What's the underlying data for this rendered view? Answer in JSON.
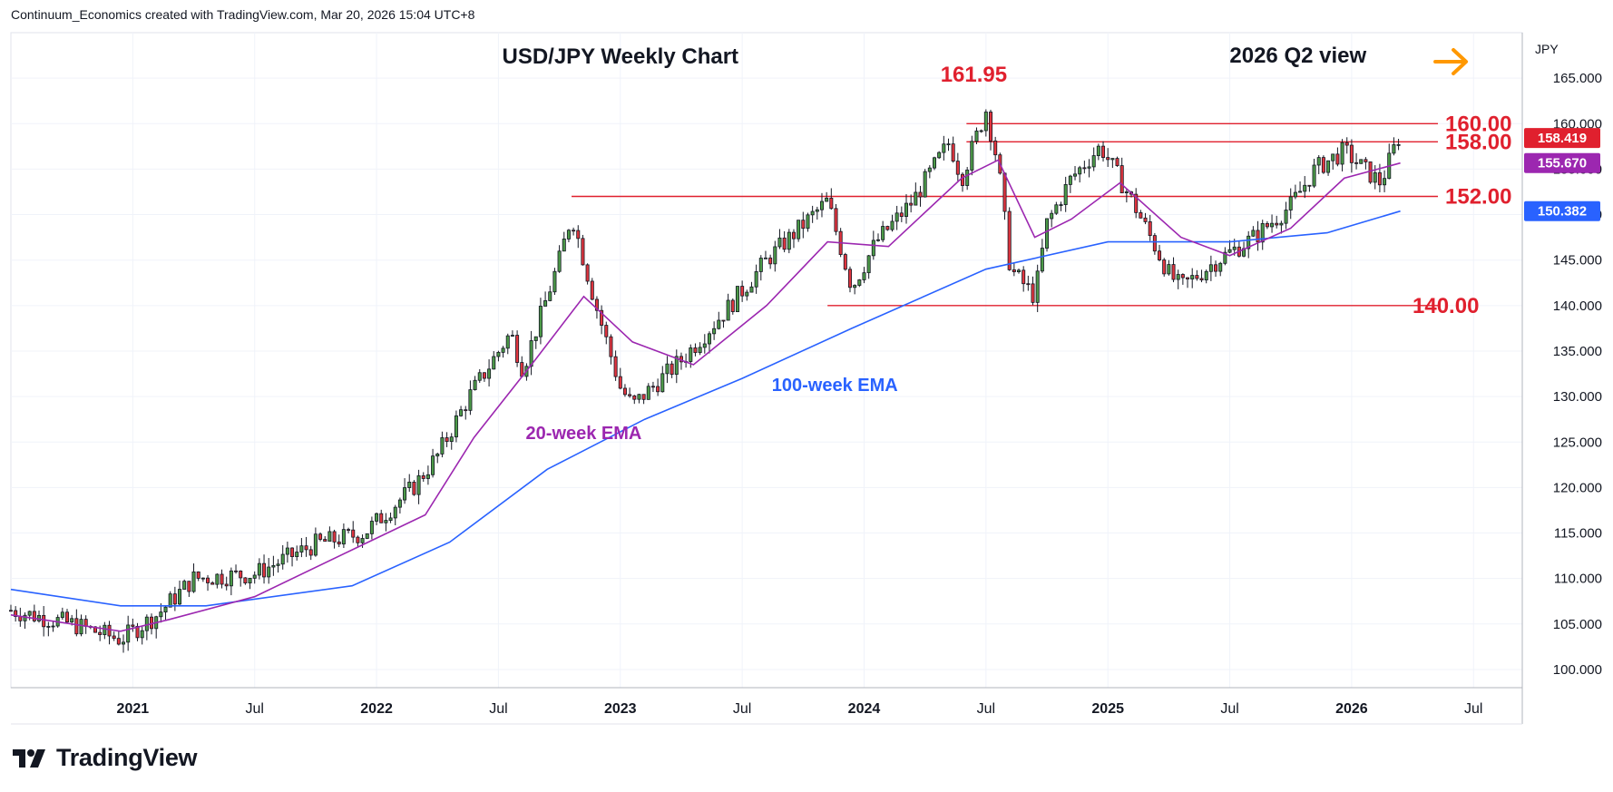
{
  "header": {
    "attribution": "Continuum_Economics created with TradingView.com, Mar 20, 2026 15:04 UTC+8"
  },
  "footer": {
    "brand": "TradingView"
  },
  "colors": {
    "up": "#4c9a48",
    "down": "#e0353f",
    "resistance": "#e0202e",
    "ema20": "#9c27b0",
    "ema100": "#2962ff",
    "arrow": "#ff9800"
  },
  "chart_data": {
    "type": "candlestick",
    "title": "USD/JPY Weekly Chart",
    "subtitle": "2026 Q2 view",
    "currency": "JPY",
    "ylim": [
      98,
      170
    ],
    "yticks": [
      "165.000",
      "160.000",
      "155.000",
      "150.000",
      "145.000",
      "140.000",
      "135.000",
      "130.000",
      "125.000",
      "120.000",
      "115.000",
      "110.000",
      "105.000",
      "100.000"
    ],
    "xticks": [
      "2021",
      "Jul",
      "2022",
      "Jul",
      "2023",
      "Jul",
      "2024",
      "Jul",
      "2025",
      "Jul",
      "2026",
      "Jul"
    ],
    "peak_label": "161.95",
    "levels": [
      {
        "value": 160.0,
        "label": "160.00",
        "from": "2024-05"
      },
      {
        "value": 158.0,
        "label": "158.00",
        "from": "2024-05"
      },
      {
        "value": 152.0,
        "label": "152.00",
        "from": "2022-10"
      },
      {
        "value": 140.0,
        "label": "140.00",
        "from": "2023-12"
      }
    ],
    "price_tags": [
      {
        "value": "158.419",
        "series": "price"
      },
      {
        "value": "155.670",
        "series": "ema20"
      },
      {
        "value": "150.382",
        "series": "ema100"
      }
    ],
    "series_labels": {
      "ema20": "20-week EMA",
      "ema100": "100-week EMA"
    },
    "weekly_close_path": [
      [
        2020.5,
        106.5
      ],
      [
        2020.75,
        105.0
      ],
      [
        2020.95,
        103.3
      ],
      [
        2021.1,
        106.0
      ],
      [
        2021.25,
        110.0
      ],
      [
        2021.5,
        110.5
      ],
      [
        2021.75,
        113.8
      ],
      [
        2021.95,
        115.0
      ],
      [
        2022.15,
        120.0
      ],
      [
        2022.25,
        123.5
      ],
      [
        2022.38,
        130.0
      ],
      [
        2022.55,
        137.0
      ],
      [
        2022.6,
        133.0
      ],
      [
        2022.75,
        145.0
      ],
      [
        2022.8,
        150.0
      ],
      [
        2022.9,
        140.0
      ],
      [
        2023.0,
        131.0
      ],
      [
        2023.05,
        129.0
      ],
      [
        2023.25,
        134.0
      ],
      [
        2023.45,
        140.0
      ],
      [
        2023.6,
        145.0
      ],
      [
        2023.85,
        151.5
      ],
      [
        2023.95,
        142.0
      ],
      [
        2024.05,
        147.0
      ],
      [
        2024.2,
        151.5
      ],
      [
        2024.35,
        158.0
      ],
      [
        2024.4,
        154.0
      ],
      [
        2024.5,
        161.5
      ],
      [
        2024.55,
        155.5
      ],
      [
        2024.6,
        144.0
      ],
      [
        2024.7,
        141.0
      ],
      [
        2024.75,
        149.0
      ],
      [
        2024.85,
        154.0
      ],
      [
        2024.97,
        157.5
      ],
      [
        2025.1,
        151.5
      ],
      [
        2025.25,
        143.5
      ],
      [
        2025.3,
        142.0
      ],
      [
        2025.45,
        145.0
      ],
      [
        2025.6,
        147.5
      ],
      [
        2025.75,
        151.0
      ],
      [
        2025.85,
        155.0
      ],
      [
        2025.97,
        157.0
      ],
      [
        2026.05,
        155.0
      ],
      [
        2026.12,
        153.5
      ],
      [
        2026.2,
        159.0
      ]
    ],
    "ema20_path": [
      [
        2020.5,
        106.0
      ],
      [
        2020.95,
        104.2
      ],
      [
        2021.15,
        105.5
      ],
      [
        2021.5,
        108.0
      ],
      [
        2021.95,
        113.8
      ],
      [
        2022.2,
        117.0
      ],
      [
        2022.4,
        125.5
      ],
      [
        2022.65,
        134.0
      ],
      [
        2022.85,
        141.0
      ],
      [
        2023.05,
        136.0
      ],
      [
        2023.3,
        133.5
      ],
      [
        2023.6,
        140.0
      ],
      [
        2023.85,
        147.0
      ],
      [
        2024.1,
        146.5
      ],
      [
        2024.4,
        154.0
      ],
      [
        2024.55,
        156.0
      ],
      [
        2024.7,
        147.5
      ],
      [
        2024.85,
        149.5
      ],
      [
        2025.05,
        153.5
      ],
      [
        2025.3,
        147.5
      ],
      [
        2025.5,
        145.5
      ],
      [
        2025.75,
        148.5
      ],
      [
        2025.97,
        154.0
      ],
      [
        2026.2,
        155.67
      ]
    ],
    "ema100_path": [
      [
        2020.5,
        108.8
      ],
      [
        2020.95,
        107.0
      ],
      [
        2021.3,
        107.0
      ],
      [
        2021.9,
        109.2
      ],
      [
        2022.3,
        114.0
      ],
      [
        2022.7,
        122.0
      ],
      [
        2023.1,
        127.5
      ],
      [
        2023.5,
        132.0
      ],
      [
        2023.95,
        137.5
      ],
      [
        2024.5,
        144.0
      ],
      [
        2025.0,
        147.0
      ],
      [
        2025.5,
        147.0
      ],
      [
        2025.9,
        148.0
      ],
      [
        2026.2,
        150.38
      ]
    ]
  }
}
